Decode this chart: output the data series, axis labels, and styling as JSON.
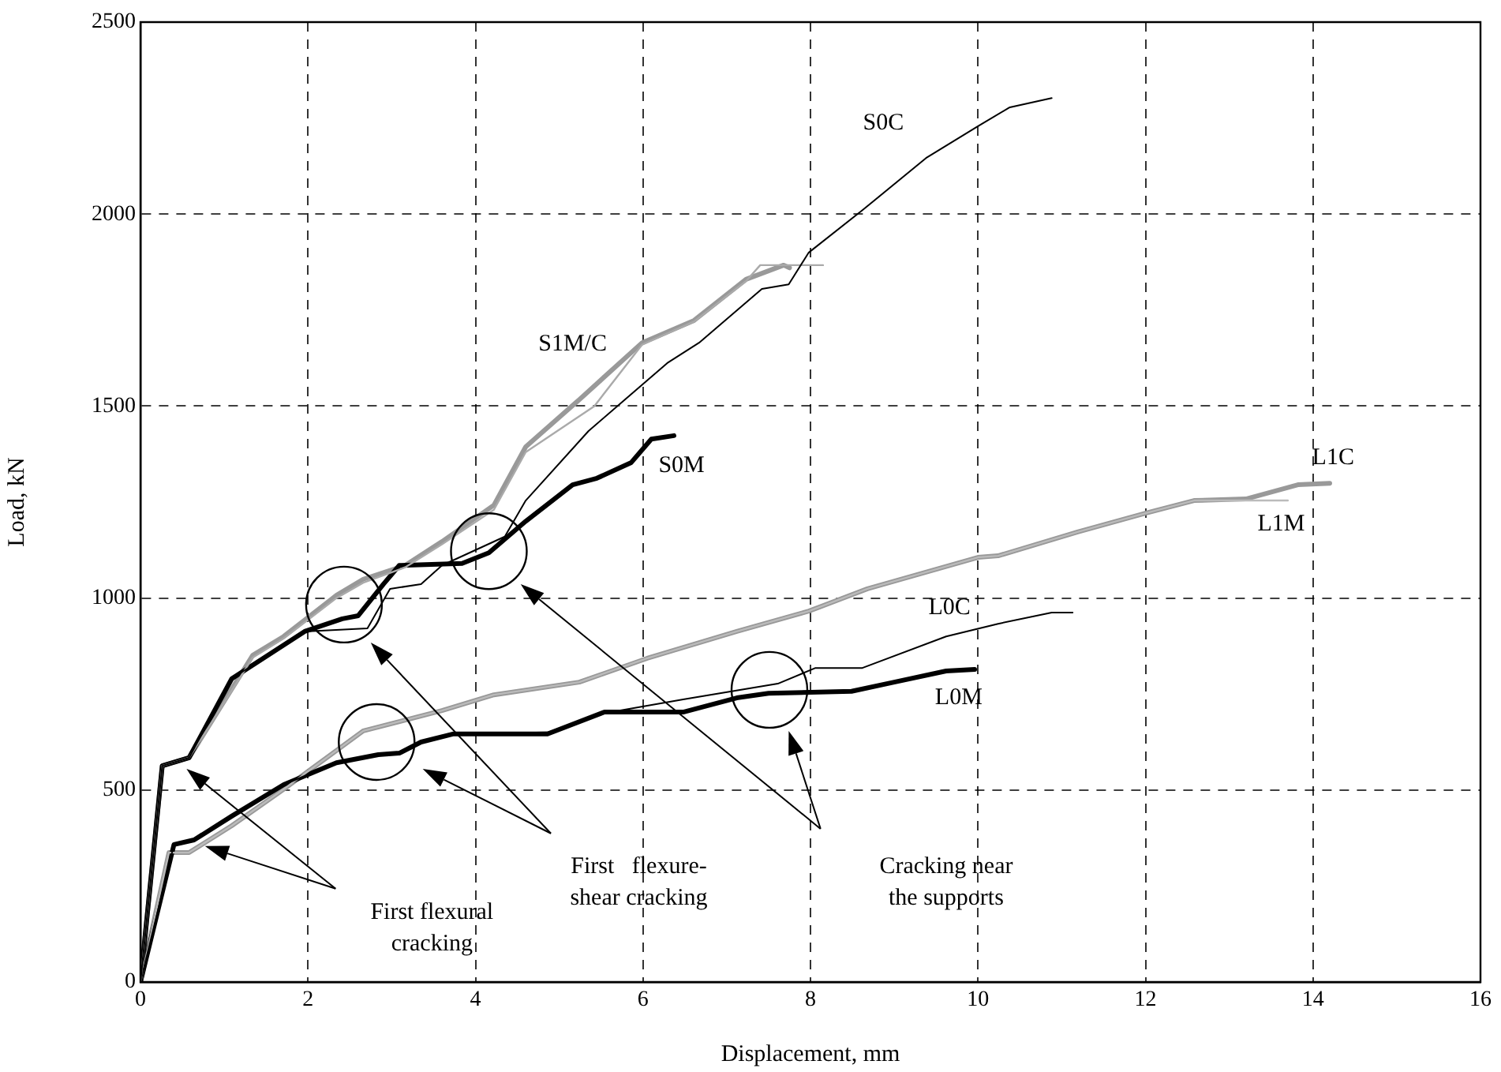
{
  "chart_data": {
    "type": "line",
    "xlabel": "Displacement, mm",
    "ylabel": "Load, kN",
    "xlim": [
      0,
      16
    ],
    "xticks": [
      0,
      2,
      4,
      6,
      8,
      10,
      12,
      14,
      16
    ],
    "ylim": [
      0,
      2500
    ],
    "yticks": [
      0,
      500,
      1000,
      1500,
      2000,
      2500
    ],
    "grid": true,
    "legend": false,
    "marker": "none",
    "line_style": "solid",
    "series": [
      {
        "color": "#000000",
        "x": [
          0,
          0.26,
          0.58,
          1.09,
          1.96,
          2.41,
          2.6,
          2.9,
          3.09,
          3.84,
          4.16,
          4.6,
          5.16,
          5.45,
          5.86,
          6.1,
          6.37
        ],
        "values": [
          0,
          563,
          584,
          790,
          913,
          946,
          954,
          1036,
          1085,
          1090,
          1118,
          1200,
          1295,
          1312,
          1353,
          1414,
          1423
        ]
      },
      {
        "color": "#000000",
        "x": [
          0,
          0.26,
          0.58,
          1.09,
          1.96,
          2.71,
          2.98,
          3.35,
          3.6,
          4.35,
          4.6,
          5.35,
          6.29,
          6.67,
          7.42,
          7.74,
          7.98,
          8.62,
          9.38,
          10.0,
          10.38,
          10.88
        ],
        "values": [
          0,
          563,
          584,
          790,
          913,
          921,
          1024,
          1036,
          1085,
          1160,
          1254,
          1435,
          1612,
          1665,
          1805,
          1817,
          1900,
          2010,
          2146,
          2229,
          2278,
          2302
        ]
      },
      {
        "color": "#999999",
        "x": [
          0,
          0.26,
          0.58,
          1.34,
          1.71,
          2.34,
          2.66,
          3.16,
          3.6,
          4.22,
          4.6,
          5.24,
          5.99,
          6.61,
          7.23,
          7.68,
          7.75
        ],
        "values": [
          0,
          563,
          584,
          851,
          900,
          1007,
          1049,
          1085,
          1147,
          1242,
          1394,
          1517,
          1665,
          1723,
          1830,
          1867,
          1860
        ]
      },
      {
        "color": "#aaaaaa",
        "x": [
          0,
          0.26,
          0.58,
          1.34,
          1.71,
          2.34,
          2.66,
          3.16,
          3.6,
          4.22,
          4.6,
          5.42,
          5.99,
          6.61,
          7.23,
          7.4,
          8.15
        ],
        "values": [
          0,
          563,
          584,
          845,
          895,
          1000,
          1040,
          1080,
          1140,
          1230,
          1380,
          1500,
          1660,
          1720,
          1825,
          1867,
          1867
        ]
      },
      {
        "color": "#000000",
        "x": [
          0,
          0.4,
          0.64,
          1.09,
          1.71,
          2.34,
          2.84,
          3.09,
          3.35,
          3.73,
          4.86,
          5.54,
          6.48,
          7.12,
          7.5,
          8.49,
          9.0,
          9.62,
          9.96
        ],
        "values": [
          0,
          358,
          370,
          432,
          514,
          571,
          592,
          596,
          625,
          646,
          646,
          703,
          703,
          740,
          752,
          757,
          781,
          810,
          814
        ]
      },
      {
        "color": "#000000",
        "x": [
          0,
          0.4,
          0.64,
          1.09,
          1.71,
          2.34,
          2.84,
          3.09,
          3.35,
          3.73,
          4.86,
          5.54,
          6.48,
          7.61,
          8.06,
          8.62,
          9.62,
          10.24,
          10.88,
          11.13
        ],
        "values": [
          0,
          358,
          370,
          432,
          514,
          571,
          592,
          596,
          625,
          646,
          650,
          700,
          736,
          777,
          818,
          818,
          900,
          933,
          962,
          962
        ]
      },
      {
        "color": "#999999",
        "x": [
          0,
          0.34,
          0.58,
          1.09,
          1.71,
          2.66,
          3.6,
          4.22,
          5.24,
          6.05,
          7.12,
          7.98,
          8.68,
          10.0,
          10.24,
          11.19,
          12.0,
          12.58,
          13.2,
          13.82,
          14.2
        ],
        "values": [
          0,
          337,
          337,
          407,
          502,
          654,
          707,
          748,
          781,
          843,
          913,
          966,
          1024,
          1106,
          1110,
          1172,
          1221,
          1254,
          1258,
          1295,
          1299
        ]
      },
      {
        "color": "#bbbbbb",
        "x": [
          0,
          0.34,
          0.58,
          1.09,
          1.71,
          2.66,
          3.6,
          4.22,
          5.24,
          6.05,
          7.12,
          7.98,
          8.68,
          10.0,
          10.24,
          11.19,
          12.0,
          12.58,
          13.2,
          13.7
        ],
        "values": [
          0,
          337,
          337,
          407,
          502,
          654,
          707,
          748,
          781,
          843,
          913,
          966,
          1024,
          1106,
          1110,
          1172,
          1221,
          1254,
          1254,
          1254
        ]
      }
    ],
    "annotations": [
      "S0C",
      "S1M/C",
      "S0M",
      "L1C",
      "L1M",
      "L0C",
      "L0M",
      "First flexural\ncracking",
      "First   flexure-\nshear cracking",
      "Cracking near\nthe supports"
    ]
  }
}
